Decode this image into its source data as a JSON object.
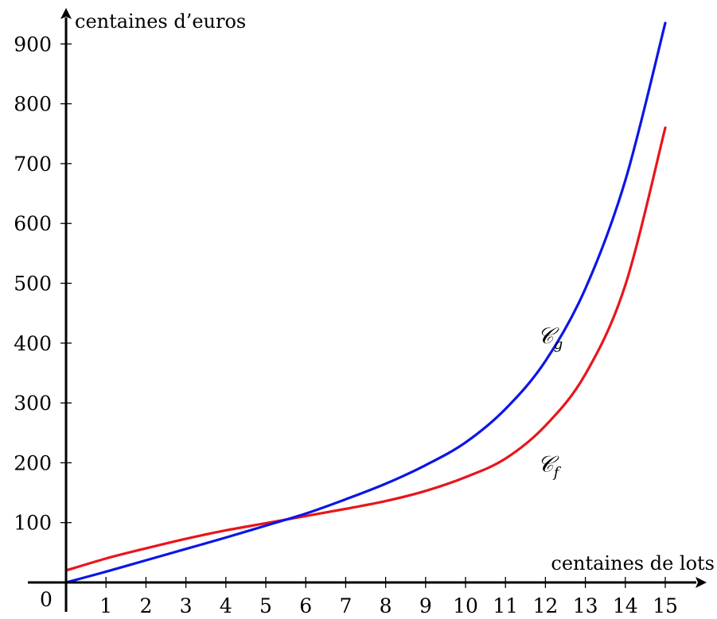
{
  "chart_data": {
    "type": "line",
    "origin_label": "0",
    "xlabel": "centaines de lots",
    "ylabel": "centaines d’euros",
    "xlim": [
      0,
      15.8
    ],
    "ylim": [
      0,
      935
    ],
    "x_ticks": [
      1,
      2,
      3,
      4,
      5,
      6,
      7,
      8,
      9,
      10,
      11,
      12,
      13,
      14,
      15
    ],
    "y_ticks": [
      100,
      200,
      300,
      400,
      500,
      600,
      700,
      800,
      900
    ],
    "grid": false,
    "series": [
      {
        "name": "𝒞",
        "name_sub": "f",
        "color": "#e8151b",
        "x": [
          0,
          1,
          2,
          3,
          4,
          5,
          6,
          7,
          8,
          9,
          10,
          11,
          12,
          13,
          14,
          15
        ],
        "y": [
          20,
          40,
          57,
          73,
          87,
          99,
          111,
          123,
          136,
          153,
          176,
          207,
          262,
          348,
          497,
          760
        ]
      },
      {
        "name": "𝒞",
        "name_sub": "g",
        "color": "#0b16e6",
        "x": [
          0,
          1,
          2,
          3,
          4,
          5,
          6,
          7,
          8,
          9,
          10,
          11,
          12,
          13,
          14,
          15
        ],
        "y": [
          0,
          18,
          37,
          56,
          75,
          95,
          115,
          139,
          165,
          196,
          234,
          290,
          370,
          491,
          672,
          935
        ]
      }
    ],
    "annotations": [
      {
        "series": 1,
        "text": "𝒞",
        "sub": "g",
        "x": 11.8,
        "y": 400
      },
      {
        "series": 0,
        "text": "𝒞",
        "sub": "f",
        "x": 11.8,
        "y": 185
      }
    ]
  }
}
